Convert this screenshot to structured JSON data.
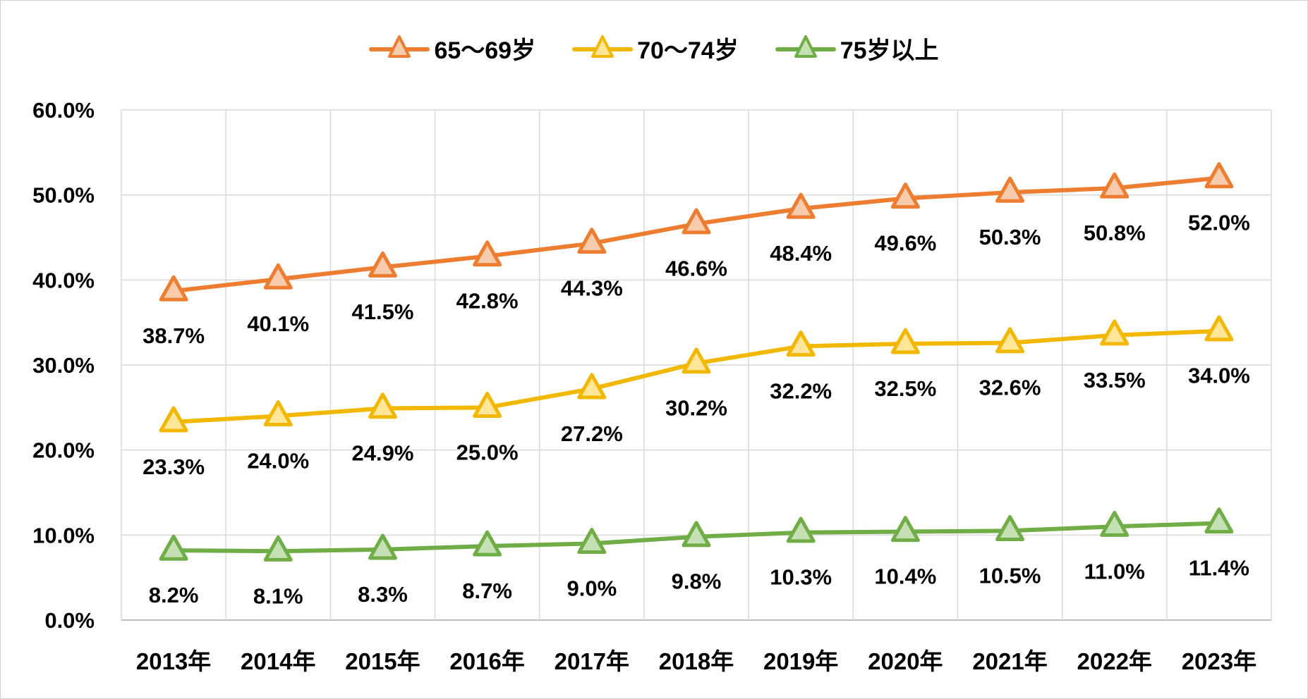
{
  "chart_data": {
    "type": "line",
    "categories": [
      "2013年",
      "2014年",
      "2015年",
      "2016年",
      "2017年",
      "2018年",
      "2019年",
      "2020年",
      "2021年",
      "2022年",
      "2023年"
    ],
    "series": [
      {
        "name": "65～69岁",
        "color": "#ED7D31",
        "fill": "#F8CBAD",
        "values": [
          38.7,
          40.1,
          41.5,
          42.8,
          44.3,
          46.6,
          48.4,
          49.6,
          50.3,
          50.8,
          52.0
        ],
        "labels": [
          "38.7%",
          "40.1%",
          "41.5%",
          "42.8%",
          "44.3%",
          "46.6%",
          "48.4%",
          "49.6%",
          "50.3%",
          "50.8%",
          "52.0%"
        ]
      },
      {
        "name": "70～74岁",
        "color": "#F2B800",
        "fill": "#FFE699",
        "values": [
          23.3,
          24.0,
          24.9,
          25.0,
          27.2,
          30.2,
          32.2,
          32.5,
          32.6,
          33.5,
          34.0
        ],
        "labels": [
          "23.3%",
          "24.0%",
          "24.9%",
          "25.0%",
          "27.2%",
          "30.2%",
          "32.2%",
          "32.5%",
          "32.6%",
          "33.5%",
          "34.0%"
        ]
      },
      {
        "name": "75岁以上",
        "color": "#70AD47",
        "fill": "#C5E0B4",
        "values": [
          8.2,
          8.1,
          8.3,
          8.7,
          9.0,
          9.8,
          10.3,
          10.4,
          10.5,
          11.0,
          11.4
        ],
        "labels": [
          "8.2%",
          "8.1%",
          "8.3%",
          "8.7%",
          "9.0%",
          "9.8%",
          "10.3%",
          "10.4%",
          "10.5%",
          "11.0%",
          "11.4%"
        ]
      }
    ],
    "yticks": [
      "0.0%",
      "10.0%",
      "20.0%",
      "30.0%",
      "40.0%",
      "50.0%",
      "60.0%"
    ],
    "ylim": [
      0,
      60
    ],
    "grid": true,
    "legend_position": "top-center",
    "marker": "triangle"
  }
}
